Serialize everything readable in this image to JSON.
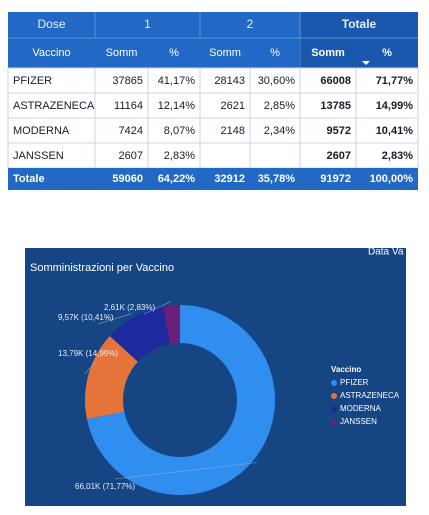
{
  "table": {
    "header": [
      [
        "Dose",
        "1",
        "2",
        "Totale"
      ],
      [
        "Vaccino",
        "Somm",
        "%",
        "Somm",
        "%",
        "Somm",
        "%"
      ]
    ],
    "rows": [
      [
        "PFIZER",
        37865,
        "41,17%",
        28143,
        "30,60%",
        66008,
        "71,77%"
      ],
      [
        "ASTRAZENECA",
        11164,
        "12,14%",
        2621,
        "2,85%",
        13785,
        "14,99%"
      ],
      [
        "MODERNA",
        7424,
        "8,07%",
        2148,
        "2,34%",
        9572,
        "10,41%"
      ],
      [
        "JANSSEN",
        2607,
        "2,83%",
        null,
        null,
        2607,
        "2,83%"
      ]
    ],
    "total": [
      "Totale",
      59060,
      "64,22%",
      32912,
      "35,78%",
      91972,
      "100,00%"
    ]
  },
  "chart_data": {
    "type": "donut",
    "title": "Somministrazioni per Vaccino",
    "annotation": "Data Va",
    "legend_title": "Vaccino",
    "categories": [
      "PFIZER",
      "ASTRAZENECA",
      "MODERNA",
      "JANSSEN"
    ],
    "values": [
      66008,
      13785,
      9572,
      2607
    ],
    "value_labels": [
      "66,01K (71,77%)",
      "13,79K (14,99%)",
      "9,57K (10,41%)",
      "2,61K (2,83%)"
    ],
    "colors": [
      "#2f8ef0",
      "#e4743a",
      "#1c2a9e",
      "#6a1f78"
    ],
    "legend": "right"
  }
}
